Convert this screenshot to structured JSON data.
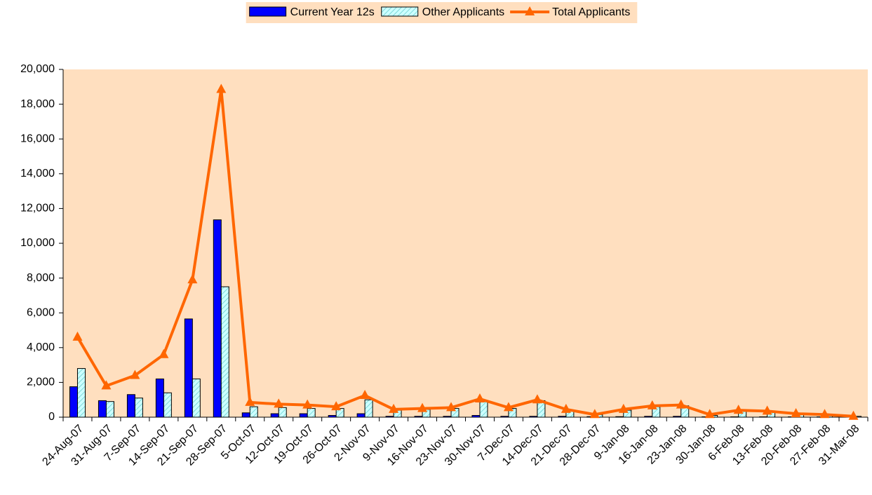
{
  "chart_data": {
    "type": "bar-line",
    "categories": [
      "24-Aug-07",
      "31-Aug-07",
      "7-Sep-07",
      "14-Sep-07",
      "21-Sep-07",
      "28-Sep-07",
      "5-Oct-07",
      "12-Oct-07",
      "19-Oct-07",
      "26-Oct-07",
      "2-Nov-07",
      "9-Nov-07",
      "16-Nov-07",
      "23-Nov-07",
      "30-Nov-07",
      "7-Dec-07",
      "14-Dec-07",
      "21-Dec-07",
      "28-Dec-07",
      "9-Jan-08",
      "16-Jan-08",
      "23-Jan-08",
      "30-Jan-08",
      "6-Feb-08",
      "13-Feb-08",
      "20-Feb-08",
      "27-Feb-08",
      "31-Mar-08"
    ],
    "series": [
      {
        "name": "Current Year 12s",
        "kind": "bar",
        "color": "#0000ff",
        "values": [
          1750,
          950,
          1300,
          2200,
          5650,
          11350,
          250,
          200,
          200,
          100,
          200,
          50,
          50,
          50,
          100,
          50,
          50,
          50,
          30,
          30,
          50,
          50,
          20,
          20,
          20,
          20,
          20,
          10
        ]
      },
      {
        "name": "Other Applicants",
        "kind": "bar",
        "color": "#ccffff",
        "values": [
          2800,
          900,
          1100,
          1400,
          2200,
          7500,
          600,
          550,
          500,
          500,
          1000,
          400,
          450,
          500,
          900,
          500,
          950,
          400,
          150,
          400,
          600,
          650,
          100,
          350,
          300,
          200,
          150,
          50
        ]
      },
      {
        "name": "Total Applicants",
        "kind": "line",
        "color": "#ff6600",
        "values": [
          4600,
          1800,
          2400,
          3600,
          7900,
          18850,
          850,
          750,
          700,
          600,
          1250,
          450,
          500,
          550,
          1050,
          550,
          1000,
          450,
          150,
          450,
          650,
          700,
          150,
          400,
          350,
          200,
          150,
          50
        ]
      }
    ],
    "ylim": [
      0,
      20000
    ],
    "yticks": [
      0,
      {
        "value": 2000,
        "label": "2,000"
      },
      {
        "value": 4000,
        "label": "4,000"
      },
      {
        "value": 6000,
        "label": "6,000"
      },
      {
        "value": 8000,
        "label": "8,000"
      },
      {
        "value": 10000,
        "label": "10,000"
      },
      {
        "value": 12000,
        "label": "12,000"
      },
      {
        "value": 14000,
        "label": "14,000"
      },
      {
        "value": 16000,
        "label": "16,000"
      },
      {
        "value": 18000,
        "label": "18,000"
      },
      {
        "value": 20000,
        "label": "20,000"
      }
    ],
    "background": "#ffdfbf",
    "legend": "top"
  }
}
